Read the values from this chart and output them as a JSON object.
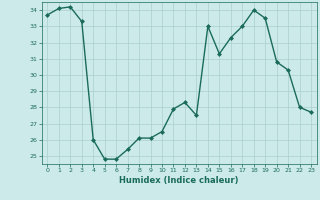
{
  "x": [
    0,
    1,
    2,
    3,
    4,
    5,
    6,
    7,
    8,
    9,
    10,
    11,
    12,
    13,
    14,
    15,
    16,
    17,
    18,
    19,
    20,
    21,
    22,
    23
  ],
  "y": [
    33.7,
    34.1,
    34.2,
    33.3,
    26.0,
    24.8,
    24.8,
    25.4,
    26.1,
    26.1,
    26.5,
    27.9,
    28.3,
    27.5,
    33.0,
    31.3,
    32.3,
    33.0,
    34.0,
    33.5,
    30.8,
    30.3,
    28.0,
    27.7
  ],
  "xlabel": "Humidex (Indice chaleur)",
  "ylabel": "",
  "ylim": [
    24.5,
    34.5
  ],
  "xlim": [
    -0.5,
    23.5
  ],
  "yticks": [
    25,
    26,
    27,
    28,
    29,
    30,
    31,
    32,
    33,
    34
  ],
  "xticks": [
    0,
    1,
    2,
    3,
    4,
    5,
    6,
    7,
    8,
    9,
    10,
    11,
    12,
    13,
    14,
    15,
    16,
    17,
    18,
    19,
    20,
    21,
    22,
    23
  ],
  "line_color": "#1a6b5a",
  "marker": "D",
  "marker_size": 2.0,
  "bg_color": "#cceaea",
  "grid_color": "#aacece",
  "tick_color": "#1a6b5a",
  "xlabel_color": "#1a6b5a",
  "line_width": 1.0
}
